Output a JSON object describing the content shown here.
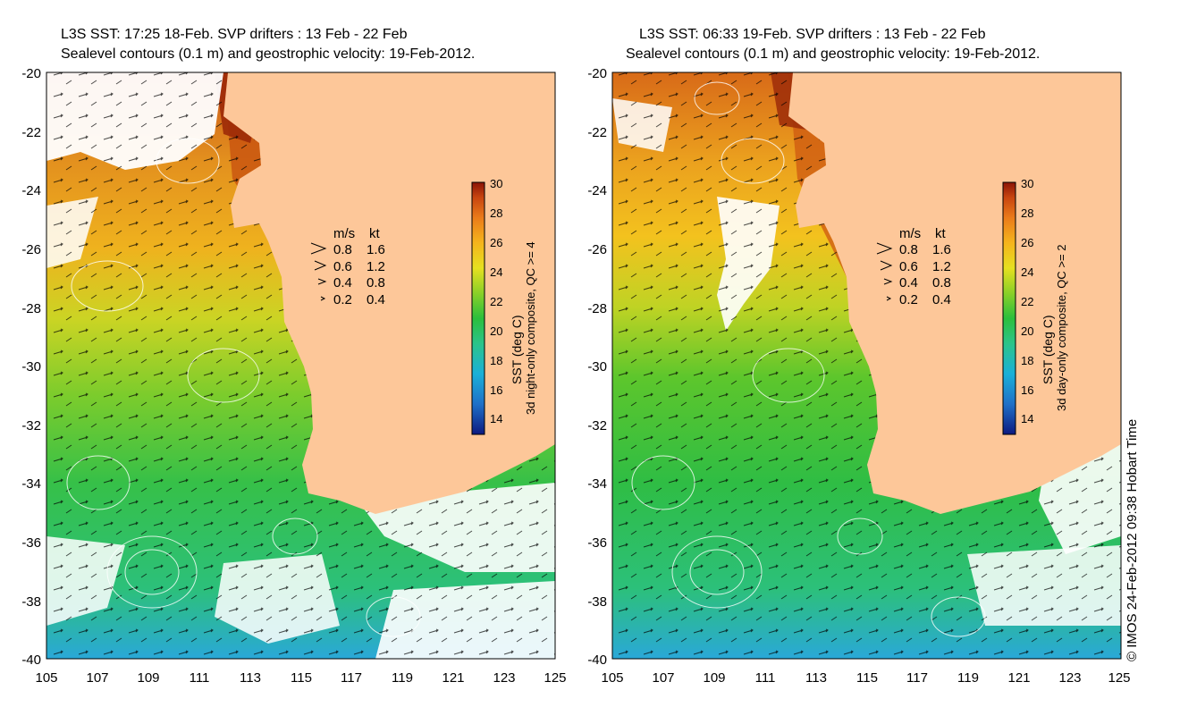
{
  "panels": [
    {
      "id": "left",
      "title_line1": "L3S SST: 17:25 18-Feb. SVP drifters : 13 Feb - 22 Feb",
      "title_line2": "Sealevel contours (0.1 m) and geostrophic velocity: 19-Feb-2012.",
      "colorbar_label": "SST (deg C)",
      "colorbar_sublabel": "3d night-only composite, QC >= 4"
    },
    {
      "id": "right",
      "title_line1": "L3S SST: 06:33 19-Feb. SVP drifters : 13 Feb - 22 Feb",
      "title_line2": "Sealevel contours (0.1 m) and geostrophic velocity: 19-Feb-2012.",
      "colorbar_label": "SST (deg C)",
      "colorbar_sublabel": "3d day-only composite, QC >= 2"
    }
  ],
  "axes": {
    "lon_ticks": [
      "105",
      "107",
      "109",
      "111",
      "113",
      "115",
      "117",
      "119",
      "121",
      "123",
      "125"
    ],
    "lat_ticks": [
      "-20",
      "-22",
      "-24",
      "-26",
      "-28",
      "-30",
      "-32",
      "-34",
      "-36",
      "-38",
      "-40"
    ],
    "lon_range": [
      105,
      125
    ],
    "lat_range": [
      -40,
      -20
    ]
  },
  "velocity_key": {
    "header_ms": "m/s",
    "header_kt": "kt",
    "rows": [
      {
        "ms": "0.8",
        "kt": "1.6"
      },
      {
        "ms": "0.6",
        "kt": "1.2"
      },
      {
        "ms": "0.4",
        "kt": "0.8"
      },
      {
        "ms": "0.2",
        "kt": "0.4"
      }
    ]
  },
  "colorbar": {
    "ticks": [
      "30",
      "28",
      "26",
      "24",
      "22",
      "20",
      "18",
      "16",
      "14"
    ],
    "range": [
      13,
      30
    ],
    "colors": [
      "#0d1a80",
      "#1f70c8",
      "#1ab0d8",
      "#2bc48a",
      "#2bbf3c",
      "#8ad028",
      "#e6e020",
      "#f5b41c",
      "#ea7b1a",
      "#c8450f",
      "#8a1406"
    ]
  },
  "colors": {
    "land": "#fdc799",
    "cloud": "#ffffff"
  },
  "credit": "© IMOS 24-Feb-2012 09:38 Hobart Time"
}
